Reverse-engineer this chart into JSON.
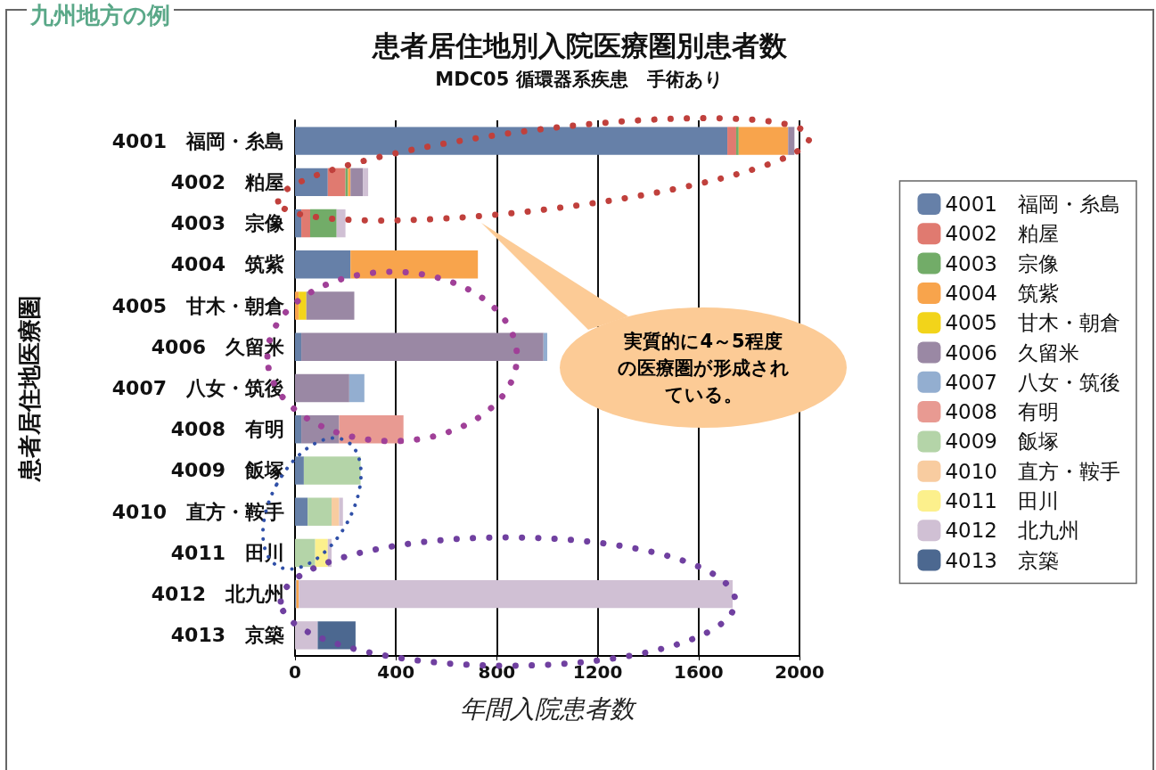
{
  "chart_data": {
    "type": "bar",
    "orientation": "horizontal",
    "stacked": true,
    "title": "患者居住地別入院医療圏別患者数",
    "subtitle": "MDC05 循環器系疾患　手術あり",
    "xlabel": "年間入院患者数",
    "ylabel": "患者居住地医療圏",
    "categories": [
      "4001　福岡・糸島",
      "4002　粕屋",
      "4003　宗像",
      "4004　筑紫",
      "4005　甘木・朝倉",
      "4006　久留米",
      "4007　八女・筑後",
      "4008　有明",
      "4009　飯塚",
      "4010　直方・鞍手",
      "4011　田川",
      "4012　北九州",
      "4013　京築"
    ],
    "series": [
      {
        "name": "4001　福岡・糸島",
        "color": "#6680a8",
        "values": [
          1714,
          130,
          25,
          220,
          null,
          25,
          null,
          25,
          35,
          50,
          null,
          5,
          null
        ]
      },
      {
        "name": "4002　粕屋",
        "color": "#e07a70",
        "values": [
          35,
          70,
          35,
          null,
          null,
          null,
          null,
          null,
          null,
          null,
          null,
          null,
          null
        ]
      },
      {
        "name": "4003　宗像",
        "color": "#72ac68",
        "values": [
          10,
          10,
          105,
          null,
          null,
          null,
          null,
          null,
          null,
          null,
          null,
          null,
          null
        ]
      },
      {
        "name": "4004　筑紫",
        "color": "#f8a44c",
        "values": [
          196,
          10,
          null,
          505,
          15,
          null,
          null,
          null,
          null,
          null,
          null,
          10,
          null
        ]
      },
      {
        "name": "4005　甘木・朝倉",
        "color": "#f2d41a",
        "values": [
          null,
          null,
          null,
          null,
          30,
          null,
          null,
          null,
          null,
          null,
          null,
          null,
          null
        ]
      },
      {
        "name": "4006　久留米",
        "color": "#9a88a4",
        "values": [
          25,
          50,
          null,
          null,
          190,
          960,
          215,
          150,
          null,
          null,
          null,
          null,
          null
        ]
      },
      {
        "name": "4007　八女・筑後",
        "color": "#93aed0",
        "values": [
          null,
          null,
          null,
          null,
          null,
          15,
          60,
          null,
          null,
          null,
          null,
          null,
          null
        ]
      },
      {
        "name": "4008　有明",
        "color": "#e89a92",
        "values": [
          null,
          null,
          null,
          null,
          null,
          null,
          null,
          255,
          null,
          null,
          null,
          null,
          null
        ]
      },
      {
        "name": "4009　飯塚",
        "color": "#b4d4a8",
        "values": [
          null,
          null,
          null,
          null,
          null,
          null,
          null,
          null,
          225,
          95,
          80,
          null,
          null
        ]
      },
      {
        "name": "4010　直方・鞍手",
        "color": "#f8cca0",
        "values": [
          null,
          null,
          null,
          null,
          null,
          null,
          null,
          null,
          null,
          30,
          null,
          null,
          null
        ]
      },
      {
        "name": "4011　田川",
        "color": "#fcf08c",
        "values": [
          null,
          null,
          null,
          null,
          null,
          null,
          null,
          null,
          null,
          null,
          50,
          null,
          null
        ]
      },
      {
        "name": "4012　北九州",
        "color": "#d0c0d4",
        "values": [
          null,
          20,
          35,
          null,
          null,
          null,
          null,
          null,
          null,
          15,
          15,
          1720,
          90
        ]
      },
      {
        "name": "4013　京築",
        "color": "#4c6890",
        "values": [
          null,
          null,
          null,
          null,
          null,
          null,
          null,
          null,
          null,
          null,
          null,
          null,
          150
        ]
      }
    ],
    "xlim": [
      0,
      2000
    ],
    "xticks": [
      0,
      400,
      800,
      1200,
      1600,
      2000
    ],
    "grid": "x",
    "legend": "right",
    "annotations": [
      "九州地方の例",
      "実質的に4～5程度の医療圏が形成されている。"
    ]
  }
}
